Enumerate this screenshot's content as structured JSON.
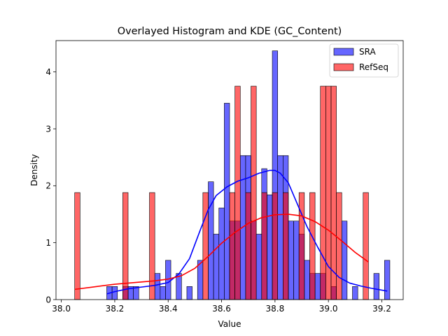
{
  "chart_data": {
    "type": "histogram",
    "title": "Overlayed Histogram and KDE (GC_Content)",
    "xlabel": "Value",
    "ylabel": "Density",
    "xlim": [
      37.98,
      39.28
    ],
    "ylim": [
      0,
      4.55
    ],
    "xticks": [
      38.0,
      38.2,
      38.4,
      38.6,
      38.8,
      39.0,
      39.2
    ],
    "yticks": [
      0,
      1,
      2,
      3,
      4
    ],
    "grid": false,
    "legend_position": "top-right",
    "bin_width": 0.02,
    "series": [
      {
        "name": "SRA",
        "color": "#0000ff",
        "bars": [
          {
            "x": 38.18,
            "y": 0.23
          },
          {
            "x": 38.2,
            "y": 0.23
          },
          {
            "x": 38.24,
            "y": 0.23
          },
          {
            "x": 38.26,
            "y": 0.23
          },
          {
            "x": 38.28,
            "y": 0.23
          },
          {
            "x": 38.36,
            "y": 0.46
          },
          {
            "x": 38.38,
            "y": 0.23
          },
          {
            "x": 38.4,
            "y": 0.69
          },
          {
            "x": 38.44,
            "y": 0.46
          },
          {
            "x": 38.48,
            "y": 0.23
          },
          {
            "x": 38.52,
            "y": 0.69
          },
          {
            "x": 38.56,
            "y": 2.07
          },
          {
            "x": 38.58,
            "y": 1.15
          },
          {
            "x": 38.6,
            "y": 1.61
          },
          {
            "x": 38.62,
            "y": 3.45
          },
          {
            "x": 38.64,
            "y": 1.38
          },
          {
            "x": 38.66,
            "y": 1.38
          },
          {
            "x": 38.68,
            "y": 2.53
          },
          {
            "x": 38.7,
            "y": 2.53
          },
          {
            "x": 38.72,
            "y": 1.38
          },
          {
            "x": 38.74,
            "y": 1.15
          },
          {
            "x": 38.76,
            "y": 2.3
          },
          {
            "x": 38.78,
            "y": 1.84
          },
          {
            "x": 38.8,
            "y": 4.37
          },
          {
            "x": 38.82,
            "y": 2.53
          },
          {
            "x": 38.84,
            "y": 2.53
          },
          {
            "x": 38.86,
            "y": 1.38
          },
          {
            "x": 38.88,
            "y": 1.38
          },
          {
            "x": 38.9,
            "y": 1.15
          },
          {
            "x": 38.92,
            "y": 0.69
          },
          {
            "x": 38.94,
            "y": 0.46
          },
          {
            "x": 38.96,
            "y": 0.46
          },
          {
            "x": 38.98,
            "y": 0.46
          },
          {
            "x": 39.02,
            "y": 0.23
          },
          {
            "x": 39.06,
            "y": 1.38
          },
          {
            "x": 39.1,
            "y": 0.23
          },
          {
            "x": 39.18,
            "y": 0.46
          },
          {
            "x": 39.22,
            "y": 0.69
          }
        ],
        "kde": {
          "x": [
            38.17,
            38.2,
            38.25,
            38.3,
            38.35,
            38.4,
            38.44,
            38.48,
            38.52,
            38.55,
            38.58,
            38.62,
            38.66,
            38.7,
            38.74,
            38.78,
            38.8,
            38.82,
            38.85,
            38.88,
            38.92,
            38.96,
            39.0,
            39.04,
            39.08,
            39.12,
            39.16,
            39.22
          ],
          "y": [
            0.1,
            0.14,
            0.19,
            0.22,
            0.25,
            0.3,
            0.45,
            0.72,
            1.22,
            1.58,
            1.83,
            1.98,
            2.08,
            2.14,
            2.22,
            2.27,
            2.27,
            2.22,
            2.05,
            1.72,
            1.28,
            0.92,
            0.58,
            0.39,
            0.29,
            0.24,
            0.2,
            0.15
          ]
        }
      },
      {
        "name": "RefSeq",
        "color": "#ff0000",
        "bars": [
          {
            "x": 38.06,
            "y": 1.88
          },
          {
            "x": 38.24,
            "y": 1.88
          },
          {
            "x": 38.34,
            "y": 1.88
          },
          {
            "x": 38.54,
            "y": 1.88
          },
          {
            "x": 38.64,
            "y": 1.88
          },
          {
            "x": 38.66,
            "y": 3.75
          },
          {
            "x": 38.7,
            "y": 1.88
          },
          {
            "x": 38.72,
            "y": 3.75
          },
          {
            "x": 38.76,
            "y": 1.88
          },
          {
            "x": 38.8,
            "y": 1.88
          },
          {
            "x": 38.84,
            "y": 1.88
          },
          {
            "x": 38.9,
            "y": 1.88
          },
          {
            "x": 38.94,
            "y": 1.88
          },
          {
            "x": 38.98,
            "y": 3.75
          },
          {
            "x": 39.0,
            "y": 3.75
          },
          {
            "x": 39.02,
            "y": 3.75
          },
          {
            "x": 39.04,
            "y": 1.88
          },
          {
            "x": 39.14,
            "y": 1.88
          }
        ],
        "kde": {
          "x": [
            38.05,
            38.1,
            38.15,
            38.2,
            38.25,
            38.3,
            38.35,
            38.4,
            38.45,
            38.5,
            38.55,
            38.6,
            38.65,
            38.7,
            38.75,
            38.8,
            38.85,
            38.9,
            38.95,
            39.0,
            39.05,
            39.1,
            39.15
          ],
          "y": [
            0.18,
            0.21,
            0.24,
            0.27,
            0.29,
            0.31,
            0.33,
            0.36,
            0.42,
            0.55,
            0.76,
            0.99,
            1.18,
            1.34,
            1.44,
            1.49,
            1.5,
            1.47,
            1.37,
            1.22,
            1.03,
            0.83,
            0.66
          ]
        }
      }
    ]
  }
}
